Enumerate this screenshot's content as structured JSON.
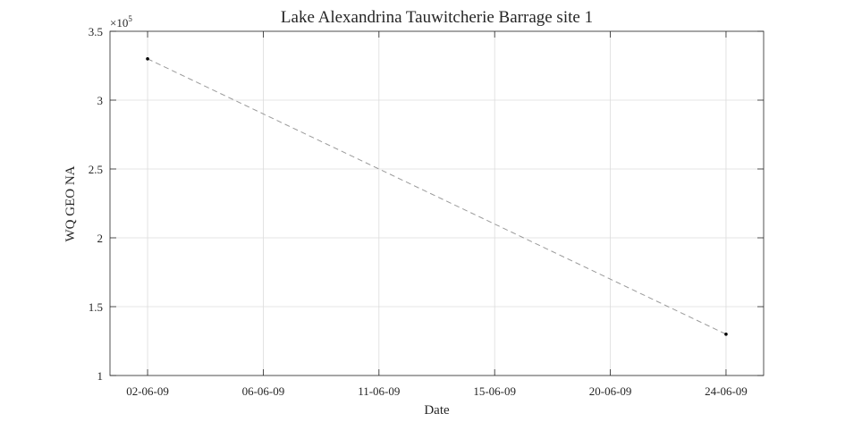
{
  "chart_data": {
    "type": "line",
    "title": "Lake Alexandrina Tauwitcherie Barrage site 1",
    "xlabel": "Date",
    "ylabel": "WQ GEO NA",
    "y_exponent_label": "×10",
    "y_exponent_power": "5",
    "x_ticks": [
      "02-06-09",
      "06-06-09",
      "11-06-09",
      "15-06-09",
      "20-06-09",
      "24-06-09"
    ],
    "x_tick_positions": [
      0,
      4,
      8,
      12,
      16,
      20
    ],
    "xlim": [
      -1.3,
      21.3
    ],
    "y_ticks": [
      1,
      1.5,
      2,
      2.5,
      3,
      3.5
    ],
    "y_tick_labels": [
      "1",
      "1.5",
      "2",
      "2.5",
      "3",
      "3.5"
    ],
    "ylim": [
      100000,
      350000
    ],
    "grid": true,
    "series": [
      {
        "x": [
          "02-06-09",
          "24-06-09"
        ],
        "x_pos": [
          0,
          20
        ],
        "values": [
          330000,
          130000
        ],
        "style": "dashed",
        "line_color": "#9a9a9a",
        "marker_color": "#000000"
      }
    ]
  }
}
